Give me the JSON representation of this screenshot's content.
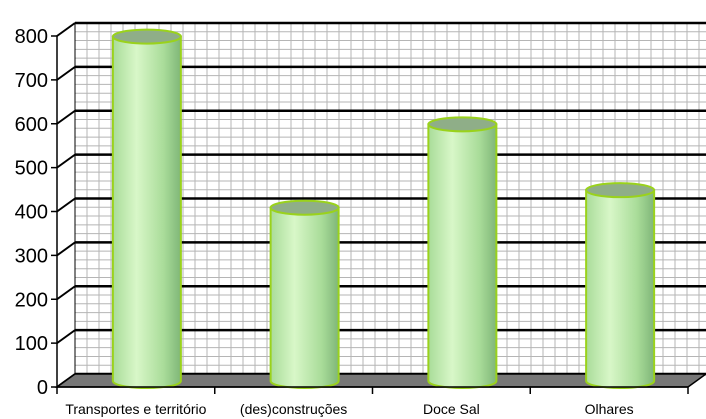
{
  "chart_data": {
    "type": "bar",
    "style": "3d-cylinder",
    "categories": [
      "Transportes e território",
      "(des)construções",
      "Doce Sal",
      "Olhares"
    ],
    "values": [
      785,
      395,
      585,
      435
    ],
    "ylim": [
      0,
      800
    ],
    "yticks": [
      "0",
      "100",
      "200",
      "300",
      "400",
      "500",
      "600",
      "700",
      "800"
    ],
    "title": "",
    "xlabel": "",
    "ylabel": "",
    "grid": true,
    "legend": "none",
    "colors": {
      "bar_light": "#d8f7c8",
      "bar_mid": "#a9dc99",
      "bar_dark": "#7fb678",
      "bar_outline": "#9ad21c",
      "bar_top": "#8fae88",
      "floor": "#777777",
      "gridline_major": "#000000",
      "gridline_minor": "#b5b5b5"
    }
  }
}
